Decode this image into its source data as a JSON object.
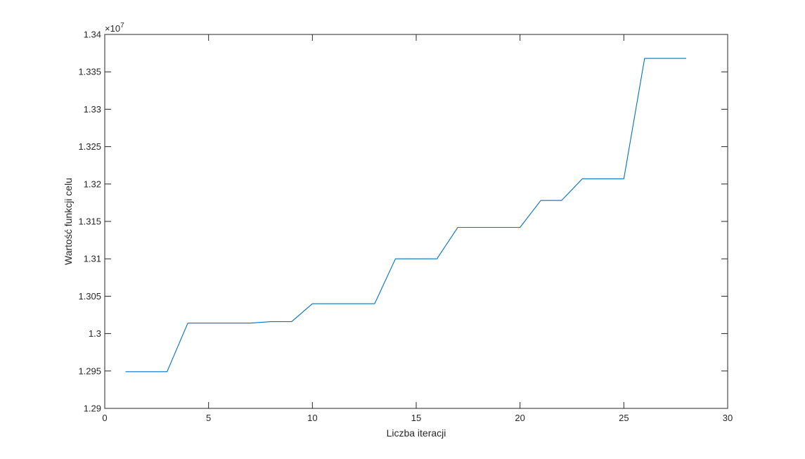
{
  "chart_data": {
    "type": "line",
    "xlabel": "Liczba iteracji",
    "ylabel": "Wartość funkcji celu",
    "y_exponent_base": "×10",
    "y_exponent_power": "7",
    "xlim": [
      0,
      30
    ],
    "ylim": [
      1.29,
      1.34
    ],
    "x_ticks": [
      0,
      5,
      10,
      15,
      20,
      25,
      30
    ],
    "x_tick_labels": [
      "0",
      "5",
      "10",
      "15",
      "20",
      "25",
      "30"
    ],
    "y_ticks": [
      1.29,
      1.295,
      1.3,
      1.305,
      1.31,
      1.315,
      1.32,
      1.325,
      1.33,
      1.335,
      1.34
    ],
    "y_tick_labels": [
      "1.29",
      "1.295",
      "1.3",
      "1.305",
      "1.31",
      "1.315",
      "1.32",
      "1.325",
      "1.33",
      "1.335",
      "1.34"
    ],
    "grid": false,
    "box": true,
    "series": [
      {
        "color": "#0072BD",
        "x": [
          1,
          2,
          3,
          4,
          5,
          6,
          7,
          8,
          9,
          10,
          11,
          12,
          13,
          14,
          15,
          16,
          17,
          18,
          19,
          20,
          21,
          22,
          23,
          24,
          25,
          26,
          27,
          28
        ],
        "y": [
          1.2949,
          1.2949,
          1.2949,
          1.3014,
          1.3014,
          1.3014,
          1.3014,
          1.3016,
          1.3016,
          1.304,
          1.304,
          1.304,
          1.304,
          1.31,
          1.31,
          1.31,
          1.3142,
          1.3142,
          1.3142,
          1.3142,
          1.3178,
          1.3178,
          1.3207,
          1.3207,
          1.3207,
          1.3368,
          1.3368,
          1.3368
        ]
      }
    ]
  }
}
